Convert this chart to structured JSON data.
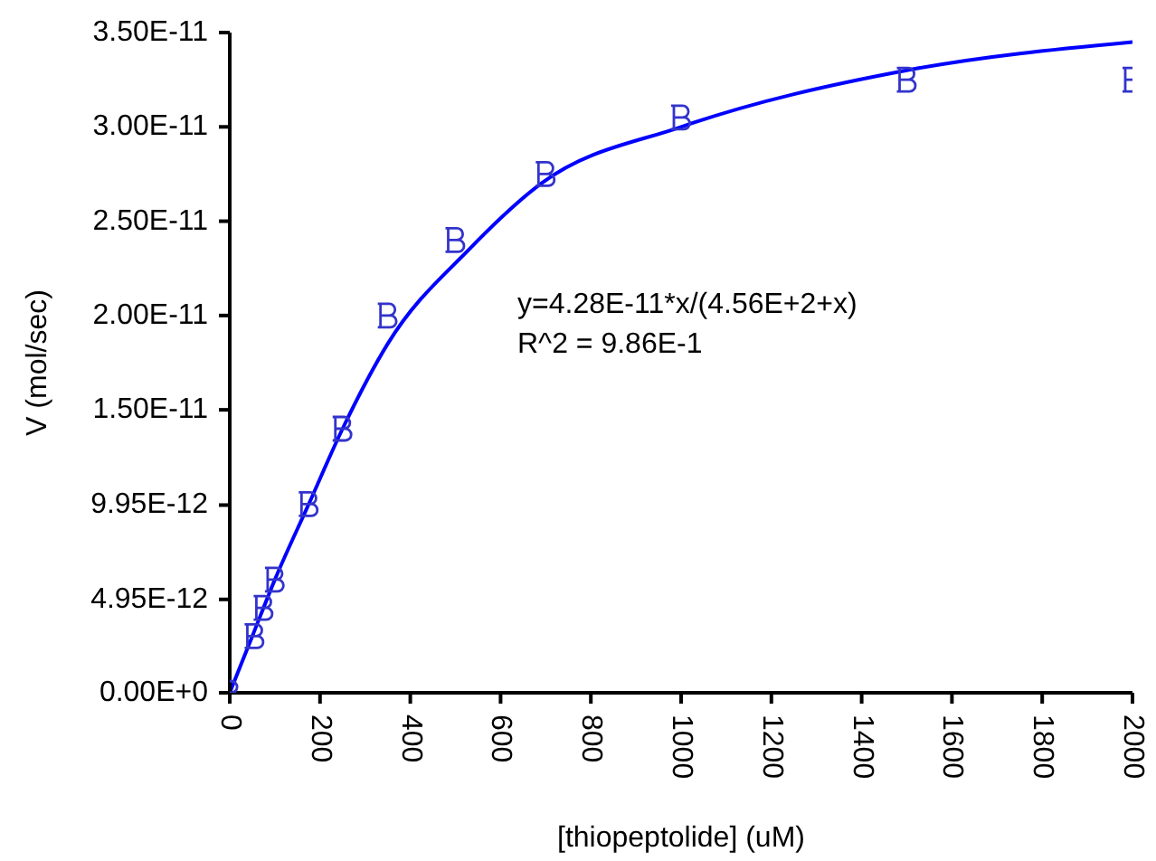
{
  "chart_data": {
    "type": "scatter",
    "xlabel": "[thiopeptolide] (uM)",
    "ylabel": "V (mol/sec)",
    "xlim": [
      0,
      2000
    ],
    "xticks": [
      0,
      200,
      400,
      600,
      800,
      1000,
      1200,
      1400,
      1600,
      1800,
      2000
    ],
    "ylim": [
      0,
      3.5e-11
    ],
    "yticks": [
      {
        "value": 0,
        "label": "0.00E+0"
      },
      {
        "value": 4.95e-12,
        "label": "4.95E-12"
      },
      {
        "value": 9.95e-12,
        "label": "9.95E-12"
      },
      {
        "value": 1.5e-11,
        "label": "1.50E-11"
      },
      {
        "value": 2e-11,
        "label": "2.00E-11"
      },
      {
        "value": 2.5e-11,
        "label": "2.50E-11"
      },
      {
        "value": 3e-11,
        "label": "3.00E-11"
      },
      {
        "value": 3.5e-11,
        "label": "3.50E-11"
      }
    ],
    "grid": false,
    "legend": false,
    "annotations": [
      "y=4.28E-11*x/(4.56E+2+x)",
      "R^2 = 9.86E-1"
    ],
    "series": [
      {
        "color": "#3333cc",
        "x": [
          0,
          55,
          75,
          100,
          175,
          250,
          350,
          500,
          700,
          1000,
          1500,
          2000
        ],
        "values": [
          0,
          3e-12,
          4.5e-12,
          6e-12,
          1e-11,
          1.4e-11,
          2e-11,
          2.4e-11,
          2.75e-11,
          3.05e-11,
          3.25e-11,
          3.25e-11
        ]
      },
      {
        "type": "line",
        "color": "#0000ff",
        "line_style": "solid",
        "marker": "none",
        "x": [
          0,
          50,
          100,
          175,
          250,
          350,
          530,
          690,
          1000,
          1500,
          2000
        ],
        "values": [
          0,
          3e-12,
          6e-12,
          1e-11,
          1.4e-11,
          1.85e-11,
          2.35e-11,
          2.7e-11,
          3e-11,
          3.3e-11,
          3.45e-11
        ]
      }
    ]
  }
}
